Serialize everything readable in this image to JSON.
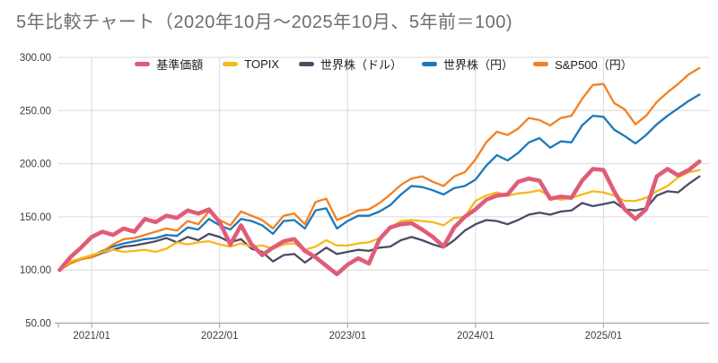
{
  "title": "5年比較チャート（2020年10月～2025年10月、5年前＝100)",
  "colors": {
    "background": "#ffffff",
    "grid": "#d9d9d9",
    "axis": "#999999",
    "title_text": "#6e6e6e",
    "axis_text": "#3d3d3d",
    "legend_text": "#1f1f1f"
  },
  "chart_data": {
    "type": "line",
    "title": "5年比較チャート（2020年10月～2025年10月、5年前＝100)",
    "x_start": "2020/10",
    "x_end": "2025/10",
    "x_interval": "monthly",
    "ylim": [
      50,
      300
    ],
    "grid": "on",
    "legend_position": "top-center",
    "yticks": [
      {
        "label": "300.00",
        "value": 300
      },
      {
        "label": "250.00",
        "value": 250
      },
      {
        "label": "200.00",
        "value": 200
      },
      {
        "label": "150.00",
        "value": 150
      },
      {
        "label": "100.00",
        "value": 100
      },
      {
        "label": "50.00",
        "value": 50
      }
    ],
    "xticks": [
      {
        "label": "2021/01",
        "month_index": 3
      },
      {
        "label": "2022/01",
        "month_index": 15
      },
      {
        "label": "2023/01",
        "month_index": 27
      },
      {
        "label": "2024/01",
        "month_index": 39
      },
      {
        "label": "2025/01",
        "month_index": 51
      }
    ],
    "series": [
      {
        "name": "基準価額",
        "color": "#e05c78",
        "stroke_width": 4.6,
        "values": [
          100,
          112,
          121,
          131,
          136,
          133,
          139,
          136,
          148,
          145,
          151,
          149,
          156,
          153,
          157,
          145,
          124,
          142,
          124,
          114,
          121,
          127,
          129,
          118,
          112,
          104,
          96,
          105,
          111,
          106,
          129,
          140,
          143,
          144,
          138,
          131,
          122,
          140,
          150,
          157,
          166,
          170,
          171,
          183,
          186,
          184,
          167,
          169,
          168,
          184,
          195,
          194,
          174,
          157,
          148,
          157,
          188,
          195,
          189,
          194,
          202
        ]
      },
      {
        "name": "TOPIX",
        "color": "#f6b918",
        "stroke_width": 2.3,
        "values": [
          100,
          108,
          111,
          114,
          117,
          119,
          117,
          118,
          119,
          117,
          120,
          126,
          124,
          126,
          127,
          124,
          122,
          125,
          122,
          123,
          120,
          124,
          125,
          119,
          122,
          128,
          123,
          123,
          125,
          126,
          130,
          140,
          146,
          147,
          146,
          145,
          142,
          149,
          150,
          165,
          170,
          173,
          170,
          172,
          173,
          175,
          169,
          166,
          168,
          171,
          174,
          173,
          170,
          165,
          165,
          168,
          174,
          179,
          187,
          192,
          194
        ]
      },
      {
        "name": "世界株（ドル）",
        "color": "#4d4b66",
        "stroke_width": 2.3,
        "values": [
          100,
          107,
          110,
          112,
          116,
          119,
          122,
          123,
          125,
          127,
          130,
          126,
          131,
          128,
          134,
          131,
          126,
          129,
          120,
          117,
          108,
          114,
          115,
          107,
          114,
          121,
          115,
          117,
          119,
          118,
          121,
          122,
          128,
          131,
          128,
          124,
          121,
          128,
          137,
          143,
          147,
          146,
          143,
          147,
          152,
          154,
          152,
          155,
          156,
          163,
          160,
          162,
          164,
          157,
          156,
          158,
          170,
          174,
          173,
          181,
          188
        ]
      },
      {
        "name": "世界株（円）",
        "color": "#1b78bc",
        "stroke_width": 2.3,
        "values": [
          100,
          107,
          111,
          113,
          118,
          122,
          125,
          127,
          129,
          130,
          133,
          132,
          140,
          138,
          148,
          142,
          138,
          148,
          146,
          142,
          134,
          146,
          147,
          139,
          156,
          158,
          139,
          146,
          151,
          151,
          155,
          161,
          171,
          179,
          178,
          175,
          171,
          177,
          179,
          185,
          198,
          208,
          203,
          210,
          220,
          224,
          215,
          221,
          220,
          236,
          245,
          244,
          232,
          226,
          219,
          227,
          237,
          245,
          252,
          259,
          265
        ]
      },
      {
        "name": "S&P500（円）",
        "color": "#f4801f",
        "stroke_width": 2.3,
        "values": [
          100,
          106,
          110,
          112,
          117,
          124,
          129,
          130,
          133,
          136,
          139,
          137,
          146,
          143,
          155,
          147,
          142,
          155,
          151,
          147,
          139,
          151,
          153,
          143,
          164,
          167,
          147,
          151,
          156,
          157,
          163,
          171,
          180,
          186,
          188,
          183,
          179,
          188,
          192,
          204,
          220,
          230,
          227,
          233,
          243,
          241,
          236,
          243,
          245,
          261,
          274,
          275,
          257,
          251,
          237,
          245,
          258,
          267,
          275,
          284,
          290
        ]
      }
    ]
  }
}
